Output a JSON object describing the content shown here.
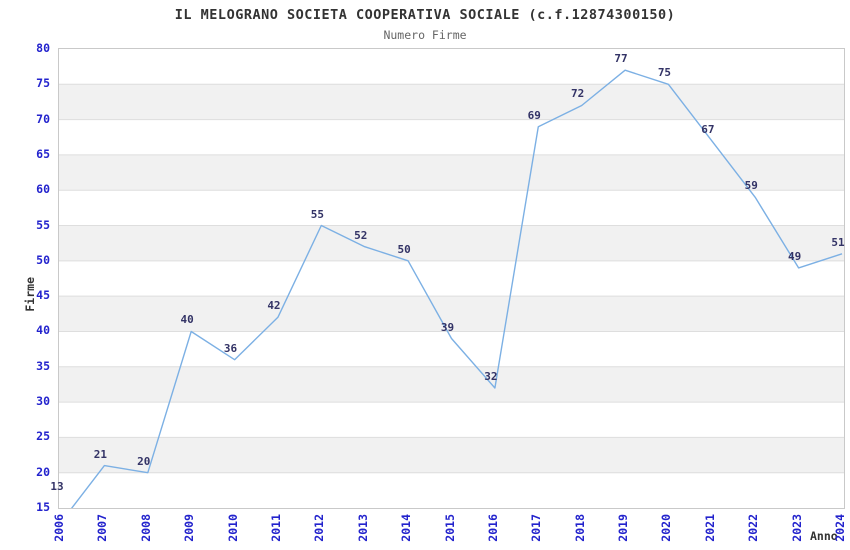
{
  "chart_data": {
    "type": "line",
    "title": "IL MELOGRANO SOCIETA COOPERATIVA SOCIALE (c.f.12874300150)",
    "subtitle": "Numero Firme",
    "xlabel": "Anno",
    "ylabel": "Firme",
    "categories": [
      "2006",
      "2007",
      "2008",
      "2009",
      "2010",
      "2011",
      "2012",
      "2013",
      "2014",
      "2015",
      "2016",
      "2017",
      "2018",
      "2019",
      "2020",
      "2021",
      "2022",
      "2023",
      "2024"
    ],
    "values": [
      13,
      21,
      20,
      40,
      36,
      42,
      55,
      52,
      50,
      39,
      32,
      69,
      72,
      77,
      75,
      67,
      59,
      49,
      51
    ],
    "ylim": [
      15,
      80
    ],
    "ytick_step": 5,
    "grid": "horizontal-gridlines-with-alternating-bands",
    "legend": "none",
    "point_labels_visible": true,
    "colors": {
      "line": "#7cb0e4",
      "point_label": "#333366",
      "tick_label": "#2323cd",
      "band": "#f1f1f1",
      "gridline": "#dedede",
      "plot_border": "#c9c9c9",
      "title": "#333333",
      "subtitle": "#666666",
      "axis_title": "#333333",
      "background": "#ffffff"
    }
  }
}
